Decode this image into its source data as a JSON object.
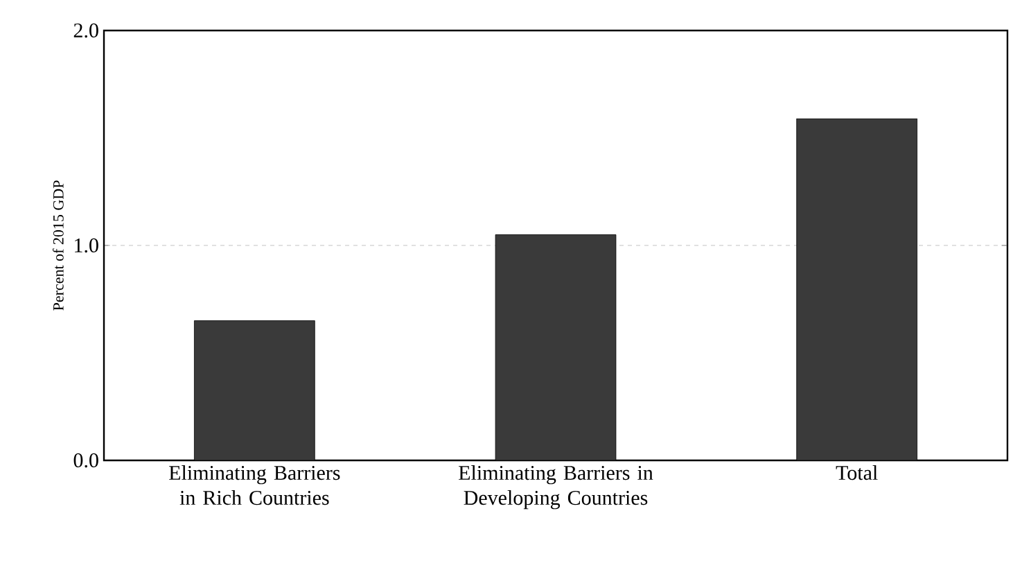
{
  "chart_data": {
    "type": "bar",
    "ylabel": "Percent of 2015 GDP",
    "categories": [
      "Eliminating Barriers in Rich Countries",
      "Eliminating Barriers in Developing Countries",
      "Total"
    ],
    "values": [
      0.65,
      1.05,
      1.59
    ],
    "color": "#3a3a3a",
    "ylim": [
      0,
      2
    ],
    "yticks": [
      {
        "value": 0,
        "label": "0.0"
      },
      {
        "value": 1,
        "label": "1.0"
      },
      {
        "value": 2,
        "label": "2.0"
      }
    ],
    "grid": "y"
  }
}
